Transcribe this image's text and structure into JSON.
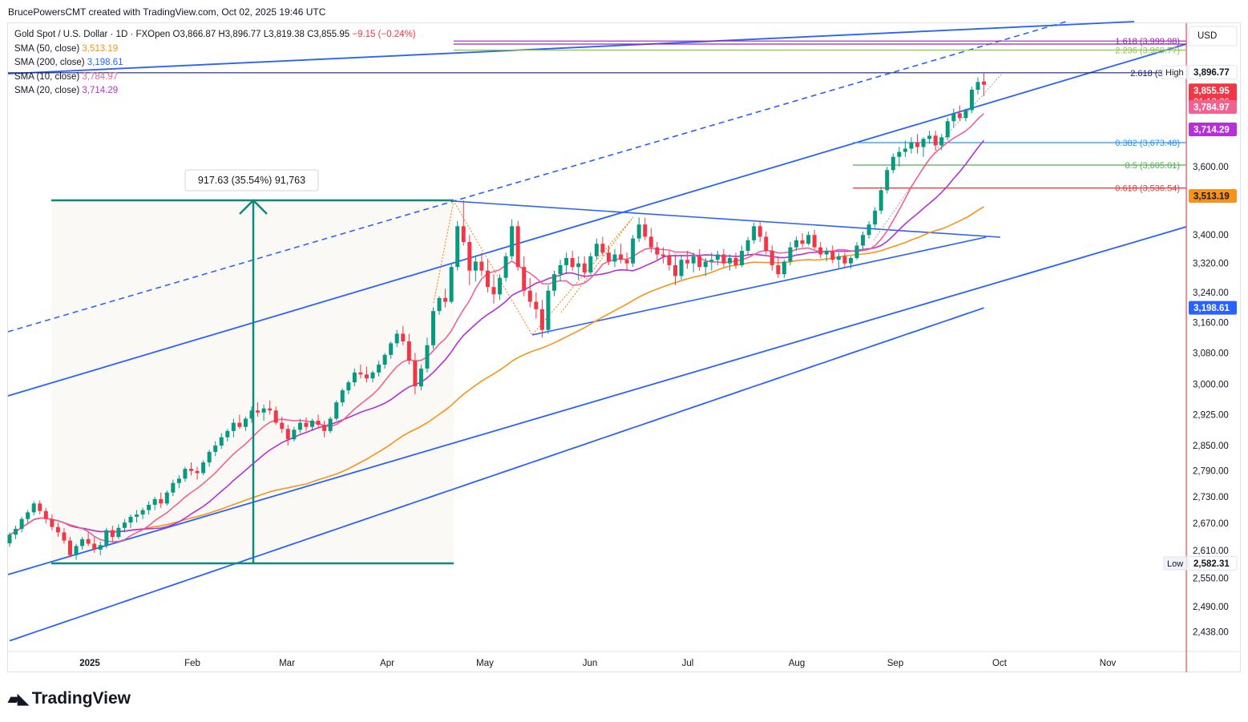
{
  "header": {
    "attribution": "BrucePowersCMT created with TradingView.com, Oct 02, 2025 19:46 UTC"
  },
  "legend": {
    "symbol": "Gold Spot / U.S. Dollar · 1D · FXOpen",
    "open_label": "O",
    "open": "3,866.87",
    "high_label": "H",
    "high": "3,896.77",
    "low_label": "L",
    "low": "3,819.38",
    "close_label": "C",
    "close": "3,855.95",
    "change": "−9.15 (−0.24%)",
    "sma": [
      {
        "label": "SMA (50, close)",
        "value": "3,513.19",
        "color": "#f7931a"
      },
      {
        "label": "SMA (200, close)",
        "value": "3,198.61",
        "color": "#2962ff"
      },
      {
        "label": "SMA (10, close)",
        "value": "3,784.97",
        "color": "#f06292"
      },
      {
        "label": "SMA (20, close)",
        "value": "3,714.29",
        "color": "#b530d8"
      }
    ]
  },
  "chart_data": {
    "type": "candlestick",
    "currency": "USD",
    "y_log_scale": true,
    "ylim": [
      2400,
      4060
    ],
    "y_ticks": [
      "2,438.00",
      "2,490.00",
      "2,550.00",
      "2,610.00",
      "2,670.00",
      "2,730.00",
      "2,790.00",
      "2,850.00",
      "2,925.00",
      "3,000.00",
      "3,080.00",
      "3,160.00",
      "3,240.00",
      "3,320.00",
      "3,400.00",
      "3,600.00"
    ],
    "x_ticks": [
      "2025",
      "Feb",
      "Mar",
      "Apr",
      "May",
      "Jun",
      "Jul",
      "Aug",
      "Sep",
      "Oct",
      "Nov"
    ],
    "price_labels": [
      {
        "text": "3,896.77",
        "value": 3896.77,
        "bg": "#ffffff",
        "fg": "#131722"
      },
      {
        "text": "3,855.95",
        "value": 3855.95,
        "bg": "#f23645",
        "fg": "#ffffff",
        "extra": "01:13:26"
      },
      {
        "text": "3,784.97",
        "value": 3784.97,
        "bg": "#f06292",
        "fg": "#ffffff"
      },
      {
        "text": "3,714.29",
        "value": 3714.29,
        "bg": "#b530d8",
        "fg": "#ffffff"
      },
      {
        "text": "3,513.19",
        "value": 3513.19,
        "bg": "#f7931a",
        "fg": "#131722"
      },
      {
        "text": "3,198.61",
        "value": 3198.61,
        "bg": "#2962ff",
        "fg": "#ffffff"
      },
      {
        "text": "2,582.31",
        "value": 2582.31,
        "bg": "#ffffff",
        "fg": "#131722"
      }
    ],
    "high_tag": "High",
    "low_tag": "Low",
    "fib_levels": [
      {
        "label": "1.618 (3,999.98)",
        "value": 3999.98,
        "color": "#9c27b0"
      },
      {
        "label": "2.236 (3,989.77)",
        "value": 3989.77,
        "color": "#9c27b0"
      },
      {
        "label": "2.236 (3,969.77)",
        "value": 3969.77,
        "color": "#8bc34a"
      },
      {
        "label": "2.618 (3,895",
        "value": 3895,
        "color": "#1a237e"
      },
      {
        "label": "0.382 (3,673.48)",
        "value": 3673.48,
        "color": "#2196f3"
      },
      {
        "label": "0.5 (3,605.01)",
        "value": 3605.01,
        "color": "#4caf50"
      },
      {
        "label": "0.618 (3,536.54)",
        "value": 3536.54,
        "color": "#e53935"
      }
    ],
    "measure": {
      "text": "917.63 (35.54%) 91,763",
      "from": 2582.31,
      "to": 3500.0
    },
    "candles": [
      [
        2626,
        2650,
        2618,
        2645
      ],
      [
        2645,
        2665,
        2635,
        2658
      ],
      [
        2658,
        2685,
        2650,
        2680
      ],
      [
        2680,
        2700,
        2670,
        2695
      ],
      [
        2695,
        2720,
        2688,
        2715
      ],
      [
        2715,
        2722,
        2690,
        2698
      ],
      [
        2698,
        2705,
        2670,
        2680
      ],
      [
        2680,
        2690,
        2655,
        2662
      ],
      [
        2662,
        2672,
        2640,
        2650
      ],
      [
        2650,
        2660,
        2625,
        2632
      ],
      [
        2632,
        2640,
        2595,
        2600
      ],
      [
        2600,
        2625,
        2590,
        2620
      ],
      [
        2620,
        2640,
        2612,
        2635
      ],
      [
        2635,
        2650,
        2620,
        2625
      ],
      [
        2625,
        2640,
        2605,
        2612
      ],
      [
        2612,
        2630,
        2600,
        2622
      ],
      [
        2622,
        2660,
        2615,
        2655
      ],
      [
        2655,
        2665,
        2630,
        2640
      ],
      [
        2640,
        2668,
        2635,
        2660
      ],
      [
        2660,
        2680,
        2650,
        2672
      ],
      [
        2672,
        2690,
        2660,
        2685
      ],
      [
        2685,
        2700,
        2672,
        2690
      ],
      [
        2690,
        2705,
        2680,
        2700
      ],
      [
        2700,
        2720,
        2690,
        2712
      ],
      [
        2712,
        2730,
        2700,
        2725
      ],
      [
        2725,
        2740,
        2705,
        2715
      ],
      [
        2715,
        2745,
        2710,
        2740
      ],
      [
        2740,
        2770,
        2732,
        2762
      ],
      [
        2762,
        2780,
        2750,
        2772
      ],
      [
        2772,
        2800,
        2765,
        2795
      ],
      [
        2795,
        2810,
        2780,
        2790
      ],
      [
        2790,
        2800,
        2770,
        2785
      ],
      [
        2785,
        2815,
        2780,
        2810
      ],
      [
        2810,
        2840,
        2800,
        2835
      ],
      [
        2835,
        2860,
        2825,
        2850
      ],
      [
        2850,
        2880,
        2842,
        2870
      ],
      [
        2870,
        2890,
        2860,
        2885
      ],
      [
        2885,
        2915,
        2870,
        2905
      ],
      [
        2905,
        2925,
        2890,
        2895
      ],
      [
        2895,
        2920,
        2885,
        2915
      ],
      [
        2915,
        2945,
        2905,
        2935
      ],
      [
        2935,
        2955,
        2920,
        2930
      ],
      [
        2930,
        2950,
        2910,
        2940
      ],
      [
        2940,
        2960,
        2925,
        2935
      ],
      [
        2935,
        2945,
        2900,
        2905
      ],
      [
        2905,
        2920,
        2880,
        2890
      ],
      [
        2890,
        2900,
        2850,
        2865
      ],
      [
        2865,
        2895,
        2860,
        2888
      ],
      [
        2888,
        2915,
        2880,
        2905
      ],
      [
        2905,
        2918,
        2885,
        2895
      ],
      [
        2895,
        2915,
        2885,
        2910
      ],
      [
        2910,
        2925,
        2895,
        2900
      ],
      [
        2900,
        2910,
        2870,
        2885
      ],
      [
        2885,
        2920,
        2880,
        2915
      ],
      [
        2915,
        2960,
        2910,
        2955
      ],
      [
        2955,
        2990,
        2945,
        2985
      ],
      [
        2985,
        3010,
        2975,
        3005
      ],
      [
        3005,
        3040,
        2995,
        3030
      ],
      [
        3030,
        3050,
        3015,
        3025
      ],
      [
        3025,
        3045,
        3005,
        3015
      ],
      [
        3015,
        3035,
        3005,
        3030
      ],
      [
        3030,
        3060,
        3020,
        3050
      ],
      [
        3050,
        3080,
        3040,
        3075
      ],
      [
        3075,
        3110,
        3065,
        3105
      ],
      [
        3105,
        3140,
        3095,
        3130
      ],
      [
        3130,
        3150,
        3100,
        3110
      ],
      [
        3110,
        3130,
        3050,
        3060
      ],
      [
        3060,
        3080,
        2975,
        2995
      ],
      [
        2995,
        3050,
        2985,
        3040
      ],
      [
        3040,
        3120,
        3030,
        3100
      ],
      [
        3100,
        3200,
        3090,
        3190
      ],
      [
        3190,
        3230,
        3180,
        3225
      ],
      [
        3225,
        3250,
        3200,
        3215
      ],
      [
        3215,
        3320,
        3210,
        3310
      ],
      [
        3310,
        3440,
        3300,
        3425
      ],
      [
        3425,
        3500,
        3370,
        3380
      ],
      [
        3380,
        3400,
        3260,
        3300
      ],
      [
        3300,
        3340,
        3270,
        3325
      ],
      [
        3325,
        3350,
        3285,
        3300
      ],
      [
        3300,
        3330,
        3240,
        3255
      ],
      [
        3255,
        3290,
        3210,
        3235
      ],
      [
        3235,
        3290,
        3220,
        3280
      ],
      [
        3280,
        3350,
        3270,
        3340
      ],
      [
        3340,
        3445,
        3330,
        3425
      ],
      [
        3425,
        3440,
        3300,
        3310
      ],
      [
        3310,
        3340,
        3230,
        3245
      ],
      [
        3245,
        3280,
        3200,
        3215
      ],
      [
        3215,
        3240,
        3170,
        3195
      ],
      [
        3195,
        3220,
        3120,
        3140
      ],
      [
        3140,
        3260,
        3130,
        3245
      ],
      [
        3245,
        3300,
        3230,
        3290
      ],
      [
        3290,
        3330,
        3270,
        3315
      ],
      [
        3315,
        3350,
        3290,
        3335
      ],
      [
        3335,
        3355,
        3300,
        3310
      ],
      [
        3310,
        3340,
        3275,
        3320
      ],
      [
        3320,
        3340,
        3280,
        3295
      ],
      [
        3295,
        3350,
        3290,
        3340
      ],
      [
        3340,
        3390,
        3330,
        3375
      ],
      [
        3375,
        3395,
        3340,
        3350
      ],
      [
        3350,
        3370,
        3315,
        3325
      ],
      [
        3325,
        3360,
        3310,
        3345
      ],
      [
        3345,
        3375,
        3320,
        3330
      ],
      [
        3330,
        3350,
        3300,
        3320
      ],
      [
        3320,
        3400,
        3310,
        3390
      ],
      [
        3390,
        3450,
        3380,
        3430
      ],
      [
        3430,
        3450,
        3385,
        3395
      ],
      [
        3395,
        3420,
        3350,
        3365
      ],
      [
        3365,
        3380,
        3330,
        3345
      ],
      [
        3345,
        3365,
        3320,
        3340
      ],
      [
        3340,
        3355,
        3300,
        3315
      ],
      [
        3315,
        3345,
        3260,
        3285
      ],
      [
        3285,
        3340,
        3275,
        3330
      ],
      [
        3330,
        3355,
        3305,
        3320
      ],
      [
        3320,
        3350,
        3295,
        3340
      ],
      [
        3340,
        3360,
        3300,
        3310
      ],
      [
        3310,
        3335,
        3285,
        3325
      ],
      [
        3325,
        3350,
        3300,
        3330
      ],
      [
        3330,
        3355,
        3315,
        3345
      ],
      [
        3345,
        3360,
        3310,
        3320
      ],
      [
        3320,
        3345,
        3300,
        3335
      ],
      [
        3335,
        3350,
        3305,
        3315
      ],
      [
        3315,
        3370,
        3310,
        3355
      ],
      [
        3355,
        3395,
        3345,
        3385
      ],
      [
        3385,
        3435,
        3375,
        3425
      ],
      [
        3425,
        3440,
        3380,
        3395
      ],
      [
        3395,
        3410,
        3345,
        3355
      ],
      [
        3355,
        3370,
        3300,
        3315
      ],
      [
        3315,
        3340,
        3280,
        3290
      ],
      [
        3290,
        3330,
        3280,
        3325
      ],
      [
        3325,
        3380,
        3315,
        3365
      ],
      [
        3365,
        3395,
        3355,
        3385
      ],
      [
        3385,
        3405,
        3365,
        3375
      ],
      [
        3375,
        3410,
        3370,
        3400
      ],
      [
        3400,
        3415,
        3360,
        3365
      ],
      [
        3365,
        3380,
        3335,
        3345
      ],
      [
        3345,
        3365,
        3325,
        3355
      ],
      [
        3355,
        3370,
        3320,
        3330
      ],
      [
        3330,
        3350,
        3305,
        3340
      ],
      [
        3340,
        3350,
        3310,
        3320
      ],
      [
        3320,
        3340,
        3305,
        3335
      ],
      [
        3335,
        3380,
        3330,
        3370
      ],
      [
        3370,
        3410,
        3360,
        3400
      ],
      [
        3400,
        3440,
        3390,
        3430
      ],
      [
        3430,
        3480,
        3420,
        3470
      ],
      [
        3470,
        3540,
        3460,
        3530
      ],
      [
        3530,
        3600,
        3520,
        3590
      ],
      [
        3590,
        3640,
        3580,
        3630
      ],
      [
        3630,
        3660,
        3600,
        3645
      ],
      [
        3645,
        3680,
        3630,
        3655
      ],
      [
        3655,
        3690,
        3640,
        3675
      ],
      [
        3675,
        3700,
        3640,
        3660
      ],
      [
        3660,
        3690,
        3630,
        3685
      ],
      [
        3685,
        3710,
        3670,
        3695
      ],
      [
        3695,
        3710,
        3650,
        3665
      ],
      [
        3665,
        3700,
        3650,
        3690
      ],
      [
        3690,
        3750,
        3680,
        3740
      ],
      [
        3740,
        3780,
        3720,
        3765
      ],
      [
        3765,
        3790,
        3740,
        3750
      ],
      [
        3750,
        3780,
        3740,
        3775
      ],
      [
        3775,
        3850,
        3765,
        3840
      ],
      [
        3840,
        3880,
        3825,
        3865
      ],
      [
        3866.87,
        3896.77,
        3819.38,
        3855.95
      ]
    ]
  }
}
